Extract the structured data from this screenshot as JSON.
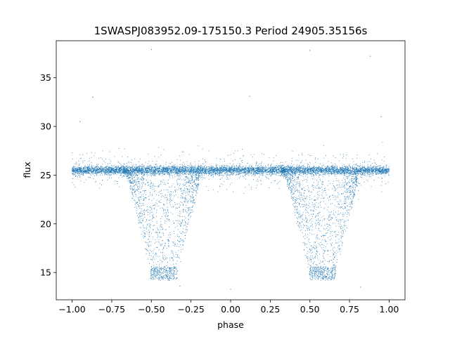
{
  "chart_data": {
    "type": "scatter",
    "title": "1SWASPJ083952.09-175150.3 Period 24905.35156s",
    "xlabel": "phase",
    "ylabel": "flux",
    "xlim": [
      -1.1,
      1.1
    ],
    "ylim": [
      12.2,
      38.8
    ],
    "xticks": [
      -1.0,
      -0.75,
      -0.5,
      -0.25,
      0.0,
      0.25,
      0.5,
      0.75,
      1.0
    ],
    "xtick_labels": [
      "−1.00",
      "−0.75",
      "−0.50",
      "−0.25",
      "0.00",
      "0.25",
      "0.50",
      "0.75",
      "1.00"
    ],
    "yticks": [
      15,
      20,
      25,
      30,
      35
    ],
    "ytick_labels": [
      "15",
      "20",
      "25",
      "30",
      "35"
    ],
    "grid": false,
    "legend": false,
    "marker_color": "#1f77b4",
    "series": [
      {
        "description": "folded light curve: baseline band near flux 25.5 across phase -1 to 1, with two eclipse-like dips reaching ~14.3 centred near phase -0.42 and 0.58",
        "x_range": [
          -1.0,
          1.0
        ],
        "baseline_flux": 25.5,
        "baseline_band": [
          24.8,
          26.2
        ],
        "dips": [
          {
            "phase_center": -0.42,
            "phase_range": [
              -0.68,
              -0.2
            ],
            "min_flux": 14.3
          },
          {
            "phase_center": 0.58,
            "phase_range": [
              0.32,
              0.8
            ],
            "min_flux": 14.3
          }
        ],
        "outliers": [
          {
            "x": -0.5,
            "y": 37.9
          },
          {
            "x": 0.5,
            "y": 37.8
          },
          {
            "x": 0.88,
            "y": 37.2
          },
          {
            "x": -0.87,
            "y": 33.0
          },
          {
            "x": 0.12,
            "y": 33.1
          },
          {
            "x": 0.95,
            "y": 31.0
          },
          {
            "x": -0.95,
            "y": 30.5
          },
          {
            "x": 0.0,
            "y": 13.3
          },
          {
            "x": -0.32,
            "y": 13.6
          },
          {
            "x": 0.82,
            "y": 13.5
          }
        ]
      }
    ]
  }
}
